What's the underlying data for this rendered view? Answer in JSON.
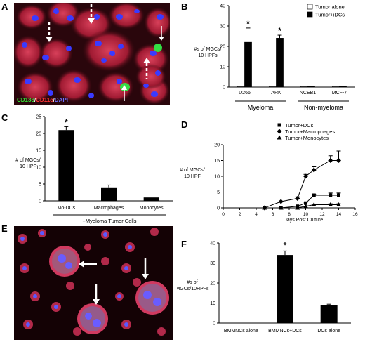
{
  "panels": {
    "A": {
      "letter": "A",
      "stain_legend": [
        {
          "text": "CD138",
          "color": "#33dd33"
        },
        {
          "text": "/",
          "color": "#ffffff"
        },
        {
          "text": "CD11c",
          "color": "#ff3333"
        },
        {
          "text": "/",
          "color": "#ffffff"
        },
        {
          "text": "DAPI",
          "color": "#6f6fff"
        }
      ]
    },
    "B": {
      "letter": "B"
    },
    "C": {
      "letter": "C"
    },
    "D": {
      "letter": "D"
    },
    "E": {
      "letter": "E"
    },
    "F": {
      "letter": "F"
    }
  },
  "chart_data": [
    {
      "panel": "B",
      "type": "bar",
      "ylabel": "#s of MGCs/10 HPFs",
      "ylim": [
        0,
        40
      ],
      "yticks": [
        0,
        10,
        20,
        30,
        40
      ],
      "categories": [
        "U266",
        "ARK",
        "NCEB1",
        "MCF-7"
      ],
      "series": [
        {
          "name": "Tumor alone",
          "color": "#ffffff",
          "values": [
            0.3,
            0.3,
            0.3,
            0.3
          ]
        },
        {
          "name": "Tumor+iDCs",
          "color": "#000000",
          "values": [
            22,
            24,
            0.3,
            0.3
          ],
          "errors": [
            7,
            1.5,
            0,
            0
          ]
        }
      ],
      "significance": [
        "*",
        "*",
        "",
        ""
      ],
      "groups": [
        {
          "label": "Myeloma",
          "categories": [
            0,
            1
          ]
        },
        {
          "label": "Non-myeloma",
          "categories": [
            2,
            3
          ]
        }
      ],
      "legend": "top-right"
    },
    {
      "panel": "C",
      "type": "bar",
      "ylabel": "# of MGCs/ 10 HPF",
      "ylim": [
        0,
        25
      ],
      "yticks": [
        0,
        5,
        10,
        15,
        20,
        25
      ],
      "categories": [
        "Mo-DCs",
        "Macrophages",
        "Monocytes"
      ],
      "values": [
        21,
        4,
        1
      ],
      "errors": [
        1,
        0.7,
        0
      ],
      "significance": [
        "*",
        "",
        ""
      ],
      "group_label": "+Myeloma Tumor Cells"
    },
    {
      "panel": "D",
      "type": "line",
      "xlabel": "Days Post Culture",
      "ylabel": "# of MGCs/ 10 HPF",
      "xlim": [
        0,
        16
      ],
      "ylim": [
        0,
        20
      ],
      "xticks": [
        0,
        2,
        4,
        6,
        8,
        10,
        12,
        14,
        16
      ],
      "yticks": [
        0,
        5,
        10,
        15,
        20
      ],
      "series": [
        {
          "name": "Tumor+DCs",
          "marker": "square",
          "x": [
            5,
            7,
            9,
            10,
            11,
            13,
            14
          ],
          "y": [
            0,
            0,
            0.5,
            1.5,
            4,
            4,
            4
          ],
          "errors": [
            0,
            0,
            0,
            0.3,
            0.3,
            0.7,
            0.7
          ]
        },
        {
          "name": "Tumor+Macrophages",
          "marker": "diamond",
          "x": [
            5,
            7,
            9,
            10,
            11,
            13,
            14
          ],
          "y": [
            0,
            2,
            3,
            10,
            12,
            15,
            15
          ],
          "errors": [
            0,
            0,
            0.5,
            0.6,
            1,
            1.5,
            3
          ]
        },
        {
          "name": "Tumor+Monocytes",
          "marker": "triangle",
          "x": [
            5,
            7,
            9,
            10,
            11,
            13,
            14
          ],
          "y": [
            0,
            0,
            0,
            0.5,
            1,
            1,
            1
          ],
          "errors": [
            0,
            0,
            0,
            0,
            0,
            0.3,
            0.3
          ]
        }
      ],
      "legend": "top-left"
    },
    {
      "panel": "F",
      "type": "bar",
      "ylabel": "#s of MGCs/10HPFs",
      "ylim": [
        0,
        40
      ],
      "yticks": [
        0,
        10,
        20,
        30,
        40
      ],
      "categories": [
        "BMMNCs alone",
        "BMMNCs+DCs",
        "DCs alone"
      ],
      "values": [
        0,
        34,
        9
      ],
      "errors": [
        0,
        2,
        0.4
      ],
      "significance": [
        "",
        "*",
        ""
      ]
    }
  ]
}
